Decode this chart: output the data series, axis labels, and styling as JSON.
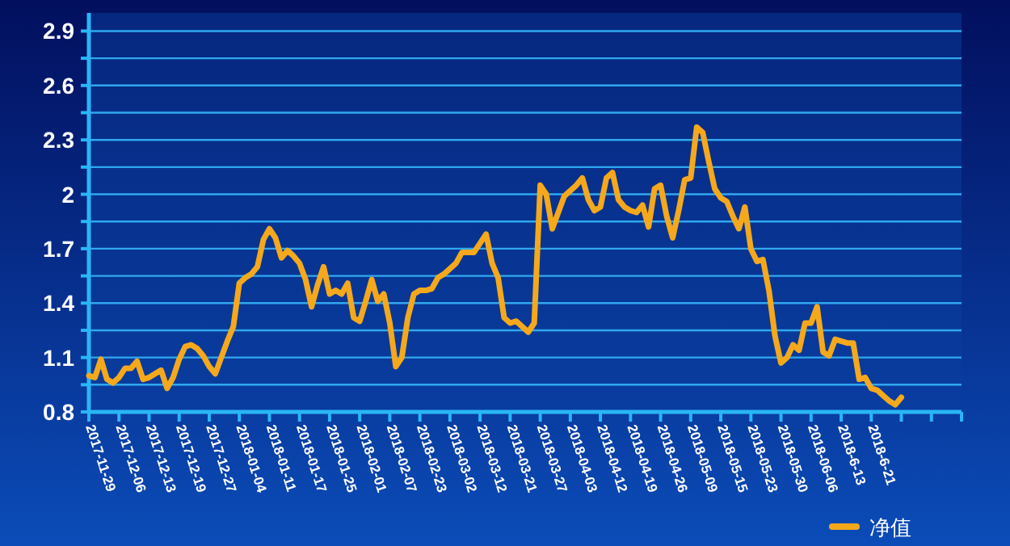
{
  "chart_data": {
    "type": "line",
    "categories": [
      "2017-11-29",
      null,
      null,
      null,
      null,
      "2017-12-06",
      null,
      null,
      null,
      null,
      "2017-12-13",
      null,
      null,
      null,
      null,
      "2017-12-19",
      null,
      null,
      null,
      null,
      "2017-12-27",
      null,
      null,
      null,
      null,
      "2018-01-04",
      null,
      null,
      null,
      null,
      "2018-01-11",
      null,
      null,
      null,
      null,
      "2018-01-17",
      null,
      null,
      null,
      null,
      "2018-01-25",
      null,
      null,
      null,
      null,
      "2018-02-01",
      null,
      null,
      null,
      null,
      "2018-02-07",
      null,
      null,
      null,
      null,
      "2018-02-23",
      null,
      null,
      null,
      null,
      "2018-03-02",
      null,
      null,
      null,
      null,
      "2018-03-12",
      null,
      null,
      null,
      null,
      "2018-03-21",
      null,
      null,
      null,
      null,
      "2018-03-27",
      null,
      null,
      null,
      null,
      "2018-04-03",
      null,
      null,
      null,
      null,
      "2018-04-12",
      null,
      null,
      null,
      null,
      "2018-04-19",
      null,
      null,
      null,
      null,
      "2018-04-26",
      null,
      null,
      null,
      null,
      "2018-05-09",
      null,
      null,
      null,
      null,
      "2018-05-15",
      null,
      null,
      null,
      null,
      "2018-05-23",
      null,
      null,
      null,
      null,
      "2018-05-30",
      null,
      null,
      null,
      null,
      "2018-06-06",
      null,
      null,
      null,
      null,
      "2018-6-13",
      null,
      null,
      null,
      null,
      "2018-6-21",
      null,
      null,
      null,
      null,
      null,
      null,
      null,
      null,
      null,
      null,
      null,
      null,
      null,
      null,
      null
    ],
    "series": [
      {
        "name": "净值",
        "color": "#f5a81c",
        "values": [
          1.0,
          0.99,
          1.09,
          0.98,
          0.96,
          0.99,
          1.04,
          1.04,
          1.08,
          0.98,
          0.99,
          1.01,
          1.03,
          0.93,
          0.99,
          1.09,
          1.16,
          1.17,
          1.15,
          1.11,
          1.05,
          1.01,
          1.1,
          1.19,
          1.27,
          1.51,
          1.54,
          1.56,
          1.6,
          1.75,
          1.81,
          1.76,
          1.65,
          1.69,
          1.66,
          1.62,
          1.53,
          1.38,
          1.5,
          1.6,
          1.45,
          1.47,
          1.45,
          1.51,
          1.32,
          1.3,
          1.41,
          1.53,
          1.41,
          1.45,
          1.29,
          1.05,
          1.1,
          1.32,
          1.45,
          1.47,
          1.47,
          1.48,
          1.54,
          1.56,
          1.59,
          1.62,
          1.68,
          1.68,
          1.68,
          1.73,
          1.78,
          1.62,
          1.54,
          1.32,
          1.29,
          1.3,
          1.27,
          1.24,
          1.29,
          2.05,
          2.0,
          1.81,
          1.9,
          1.99,
          2.02,
          2.05,
          2.09,
          1.97,
          1.91,
          1.93,
          2.09,
          2.12,
          1.97,
          1.93,
          1.91,
          1.9,
          1.94,
          1.82,
          2.03,
          2.05,
          1.88,
          1.76,
          1.91,
          2.08,
          2.09,
          2.37,
          2.34,
          2.18,
          2.03,
          1.98,
          1.96,
          1.88,
          1.81,
          1.93,
          1.7,
          1.63,
          1.64,
          1.47,
          1.22,
          1.07,
          1.1,
          1.17,
          1.14,
          1.29,
          1.29,
          1.38,
          1.13,
          1.11,
          1.2,
          1.19,
          1.18,
          1.18,
          0.98,
          0.99,
          0.93,
          0.92,
          0.89,
          0.86,
          0.84,
          0.88,
          null,
          null,
          null,
          null,
          null,
          null,
          null,
          null,
          null,
          null
        ]
      }
    ],
    "ylim": [
      0.8,
      3.0
    ],
    "yticks": [
      0.8,
      {
        "value": 0.95,
        "label": null
      },
      1.1,
      {
        "value": 1.25,
        "label": null
      },
      1.4,
      {
        "value": 1.55,
        "label": null
      },
      1.7,
      {
        "value": 1.85,
        "label": null
      },
      2,
      {
        "value": 2.15,
        "label": null
      },
      2.3,
      {
        "value": 2.45,
        "label": null
      },
      2.6,
      {
        "value": 2.75,
        "label": null
      },
      2.9
    ],
    "grid": "y",
    "legend": "bottom right"
  }
}
